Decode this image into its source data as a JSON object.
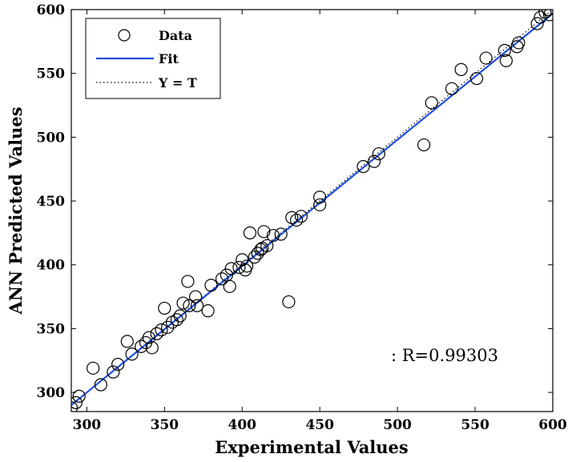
{
  "chart_data": {
    "type": "scatter",
    "xlabel": "Experimental Values",
    "ylabel": "ANN Predicted Values",
    "xlim": [
      290,
      600
    ],
    "ylim": [
      285,
      600
    ],
    "x_ticks": [
      300,
      350,
      400,
      450,
      500,
      550,
      600
    ],
    "y_ticks": [
      300,
      350,
      400,
      450,
      500,
      550,
      600
    ],
    "legend": {
      "placement": "top-left",
      "entries": [
        "Data",
        "Fit",
        "Y = T"
      ]
    },
    "annotation": ": R=0.99303",
    "fit": {
      "slope": 0.99,
      "intercept": 3,
      "color": "#1f4fdf"
    },
    "identity_line": {
      "slope": 1,
      "intercept": 0,
      "style": "dotted"
    },
    "series": [
      {
        "name": "Data",
        "marker": "open-circle",
        "points": [
          [
            290,
            288
          ],
          [
            293,
            292
          ],
          [
            295,
            297
          ],
          [
            304,
            319
          ],
          [
            309,
            306
          ],
          [
            317,
            316
          ],
          [
            320,
            322
          ],
          [
            326,
            340
          ],
          [
            329,
            330
          ],
          [
            335,
            336
          ],
          [
            338,
            339
          ],
          [
            340,
            343
          ],
          [
            342,
            335
          ],
          [
            345,
            346
          ],
          [
            348,
            349
          ],
          [
            350,
            366
          ],
          [
            352,
            351
          ],
          [
            355,
            355
          ],
          [
            358,
            357
          ],
          [
            360,
            360
          ],
          [
            362,
            370
          ],
          [
            365,
            387
          ],
          [
            366,
            368
          ],
          [
            370,
            375
          ],
          [
            371,
            368
          ],
          [
            378,
            364
          ],
          [
            380,
            384
          ],
          [
            387,
            389
          ],
          [
            390,
            392
          ],
          [
            392,
            383
          ],
          [
            393,
            397
          ],
          [
            398,
            398
          ],
          [
            400,
            404
          ],
          [
            402,
            396
          ],
          [
            403,
            399
          ],
          [
            405,
            425
          ],
          [
            408,
            406
          ],
          [
            410,
            409
          ],
          [
            412,
            412
          ],
          [
            413,
            413
          ],
          [
            414,
            426
          ],
          [
            416,
            415
          ],
          [
            420,
            423
          ],
          [
            425,
            424
          ],
          [
            430,
            371
          ],
          [
            432,
            437
          ],
          [
            435,
            435
          ],
          [
            438,
            438
          ],
          [
            450,
            453
          ],
          [
            450,
            447
          ],
          [
            478,
            477
          ],
          [
            485,
            481
          ],
          [
            488,
            487
          ],
          [
            517,
            494
          ],
          [
            522,
            527
          ],
          [
            535,
            538
          ],
          [
            541,
            553
          ],
          [
            551,
            546
          ],
          [
            557,
            562
          ],
          [
            569,
            568
          ],
          [
            570,
            560
          ],
          [
            577,
            571
          ],
          [
            578,
            574
          ],
          [
            590,
            589
          ],
          [
            592,
            594
          ],
          [
            595,
            598
          ],
          [
            597,
            600
          ],
          [
            598,
            596
          ]
        ]
      }
    ]
  }
}
